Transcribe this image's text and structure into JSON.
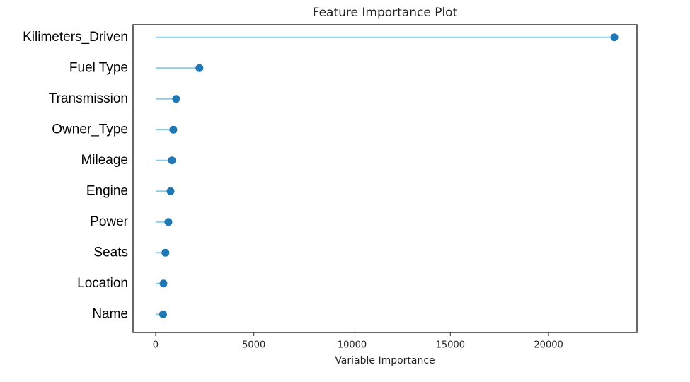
{
  "chart_data": {
    "type": "lollipop",
    "title": "Feature Importance Plot",
    "x_label": "Variable Importance",
    "categories": [
      "Kilimeters_Driven",
      "Fuel Type",
      "Transmission",
      "Owner_Type",
      "Mileage",
      "Engine",
      "Power",
      "Seats",
      "Location",
      "Name"
    ],
    "values": [
      23350,
      2230,
      1045,
      900,
      830,
      760,
      650,
      500,
      400,
      380
    ],
    "stem_color": "#87ceeb",
    "color": "#1f77b4",
    "xlim": [
      -1150,
      24500
    ],
    "xticks": [
      0,
      5000,
      10000,
      15000,
      20000
    ]
  }
}
